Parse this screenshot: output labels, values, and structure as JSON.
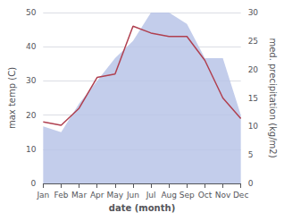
{
  "chart_data": {
    "type": "line",
    "xlabel": "date (month)",
    "ylabel": "max temp (C)",
    "y2label": "med. precipitation (kg/m2)",
    "categories": [
      "Jan",
      "Feb",
      "Mar",
      "Apr",
      "May",
      "Jun",
      "Jul",
      "Aug",
      "Sep",
      "Oct",
      "Nov",
      "Dec"
    ],
    "series": [
      {
        "type": "area",
        "axis": "y2",
        "color": "#b8c4e8",
        "values": [
          10,
          9,
          14,
          18,
          22,
          25,
          30,
          30,
          28,
          22,
          22,
          12
        ]
      },
      {
        "type": "line",
        "color": "#b04050",
        "values": [
          18,
          17,
          22,
          31,
          32,
          46,
          44,
          43,
          43,
          36,
          25,
          19
        ]
      }
    ],
    "ylim": [
      0,
      50
    ],
    "yticks": [
      0,
      10,
      20,
      30,
      40,
      50
    ],
    "y2lim": [
      0,
      30
    ],
    "y2ticks": [
      0,
      5,
      10,
      15,
      20,
      25,
      30
    ],
    "grid": true
  }
}
